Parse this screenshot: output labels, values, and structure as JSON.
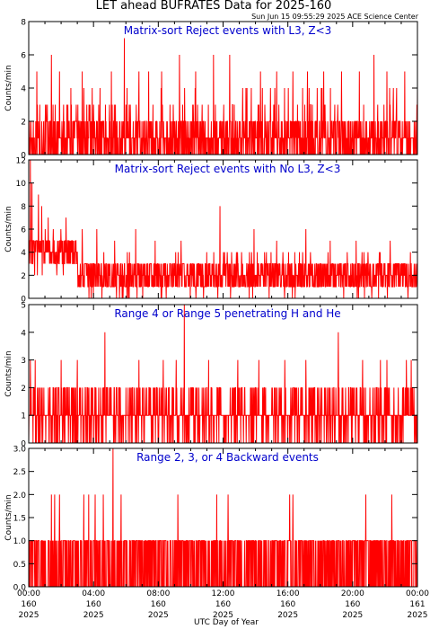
{
  "header": {
    "title": "LET ahead BUFRATES Data for 2025-160",
    "timestamp": "Sun Jun 15 09:55:29 2025 ACE Science Center"
  },
  "colors": {
    "trace": "#ff0000",
    "panel_title": "#0000cc",
    "axis": "#000000"
  },
  "chart_data": [
    {
      "type": "line",
      "title": "Matrix-sort Reject events with L3, Z<3",
      "ylabel": "Counts/min",
      "ylim": [
        0,
        8
      ],
      "yticks": [
        "0",
        "2",
        "4",
        "6",
        "8"
      ],
      "sample": {
        "baseline": 1,
        "spikes": [
          [
            0.5,
            5
          ],
          [
            1.4,
            6
          ],
          [
            1.9,
            5
          ],
          [
            2.6,
            4
          ],
          [
            3.3,
            5
          ],
          [
            4.4,
            4
          ],
          [
            5.1,
            5
          ],
          [
            5.9,
            7
          ],
          [
            6.8,
            5
          ],
          [
            7.4,
            5
          ],
          [
            8.2,
            5
          ],
          [
            9.3,
            6
          ],
          [
            10.3,
            5
          ],
          [
            11.4,
            6
          ],
          [
            12.4,
            6
          ],
          [
            13.2,
            4
          ],
          [
            14.3,
            5
          ],
          [
            15.3,
            5
          ],
          [
            16.3,
            5
          ],
          [
            17.2,
            5
          ],
          [
            17.8,
            4
          ],
          [
            18.2,
            5
          ],
          [
            19.3,
            5
          ],
          [
            20.4,
            5
          ],
          [
            21.3,
            6
          ],
          [
            22.1,
            5
          ],
          [
            23.2,
            5
          ]
        ],
        "range": [
          0,
          4
        ]
      }
    },
    {
      "type": "line",
      "title": "Matrix-sort Reject events with No L3, Z<3",
      "ylabel": "Counts/min",
      "ylim": [
        0,
        12
      ],
      "yticks": [
        "0",
        "2",
        "4",
        "6",
        "8",
        "10",
        "12"
      ],
      "sample": {
        "baseline": 2,
        "spikes": [
          [
            0.1,
            12
          ],
          [
            0.2,
            10
          ],
          [
            0.6,
            9
          ],
          [
            0.8,
            8
          ],
          [
            1.2,
            7
          ],
          [
            2.3,
            7
          ],
          [
            3.3,
            6
          ],
          [
            4.2,
            6
          ],
          [
            5.3,
            5
          ],
          [
            6.6,
            6
          ],
          [
            7.8,
            5
          ],
          [
            9.4,
            5
          ],
          [
            11.8,
            8
          ],
          [
            13.9,
            6
          ],
          [
            15.3,
            5
          ],
          [
            17.1,
            6
          ],
          [
            18.6,
            5
          ],
          [
            20.2,
            5
          ],
          [
            22.3,
            5
          ]
        ],
        "range": [
          0,
          5
        ]
      }
    },
    {
      "type": "line",
      "title": "Range 4 or Range 5 penetrating H and He",
      "ylabel": "Counts/min",
      "ylim": [
        0,
        5
      ],
      "yticks": [
        "0",
        "1",
        "2",
        "3",
        "4",
        "5"
      ],
      "sample": {
        "baseline": 1,
        "spikes": [
          [
            0.1,
            3
          ],
          [
            0.4,
            3
          ],
          [
            2.0,
            3
          ],
          [
            3.0,
            3
          ],
          [
            4.7,
            4
          ],
          [
            6.8,
            3
          ],
          [
            8.3,
            3
          ],
          [
            9.1,
            3
          ],
          [
            9.6,
            5
          ],
          [
            11.1,
            3
          ],
          [
            12.9,
            3
          ],
          [
            14.2,
            3
          ],
          [
            15.8,
            3
          ],
          [
            17.1,
            3
          ],
          [
            19.1,
            4
          ],
          [
            20.6,
            3
          ],
          [
            21.7,
            3
          ],
          [
            22.1,
            3
          ],
          [
            23.3,
            3
          ],
          [
            23.6,
            3
          ]
        ],
        "range": [
          0,
          2
        ]
      }
    },
    {
      "type": "line",
      "title": "Range 2, 3, or 4 Backward events",
      "ylabel": "Counts/min",
      "ylim": [
        0,
        3
      ],
      "yticks": [
        "0.0",
        "0.5",
        "1.0",
        "1.5",
        "2.0",
        "2.5",
        "3.0"
      ],
      "sample": {
        "baseline": 0,
        "spikes": [
          [
            1.4,
            2
          ],
          [
            1.6,
            2
          ],
          [
            1.9,
            2
          ],
          [
            3.4,
            2
          ],
          [
            3.7,
            2
          ],
          [
            4.1,
            2
          ],
          [
            4.6,
            2
          ],
          [
            5.2,
            3
          ],
          [
            5.7,
            2
          ],
          [
            9.2,
            2
          ],
          [
            11.6,
            2
          ],
          [
            12.3,
            2
          ],
          [
            16.1,
            2
          ],
          [
            16.3,
            2
          ],
          [
            20.8,
            2
          ],
          [
            22.4,
            2
          ]
        ],
        "range": [
          0,
          1
        ]
      }
    }
  ],
  "xaxis": {
    "xlabel": "UTC Day of Year",
    "xlim_hours": [
      0,
      24
    ],
    "ticks": [
      {
        "hour": 0,
        "time": "00:00",
        "day": "160",
        "year": "2025"
      },
      {
        "hour": 4,
        "time": "04:00",
        "day": "160",
        "year": "2025"
      },
      {
        "hour": 8,
        "time": "08:00",
        "day": "160",
        "year": "2025"
      },
      {
        "hour": 12,
        "time": "12:00",
        "day": "160",
        "year": "2025"
      },
      {
        "hour": 16,
        "time": "16:00",
        "day": "160",
        "year": "2025"
      },
      {
        "hour": 20,
        "time": "20:00",
        "day": "160",
        "year": "2025"
      },
      {
        "hour": 24,
        "time": "00:00",
        "day": "161",
        "year": "2025"
      }
    ]
  }
}
